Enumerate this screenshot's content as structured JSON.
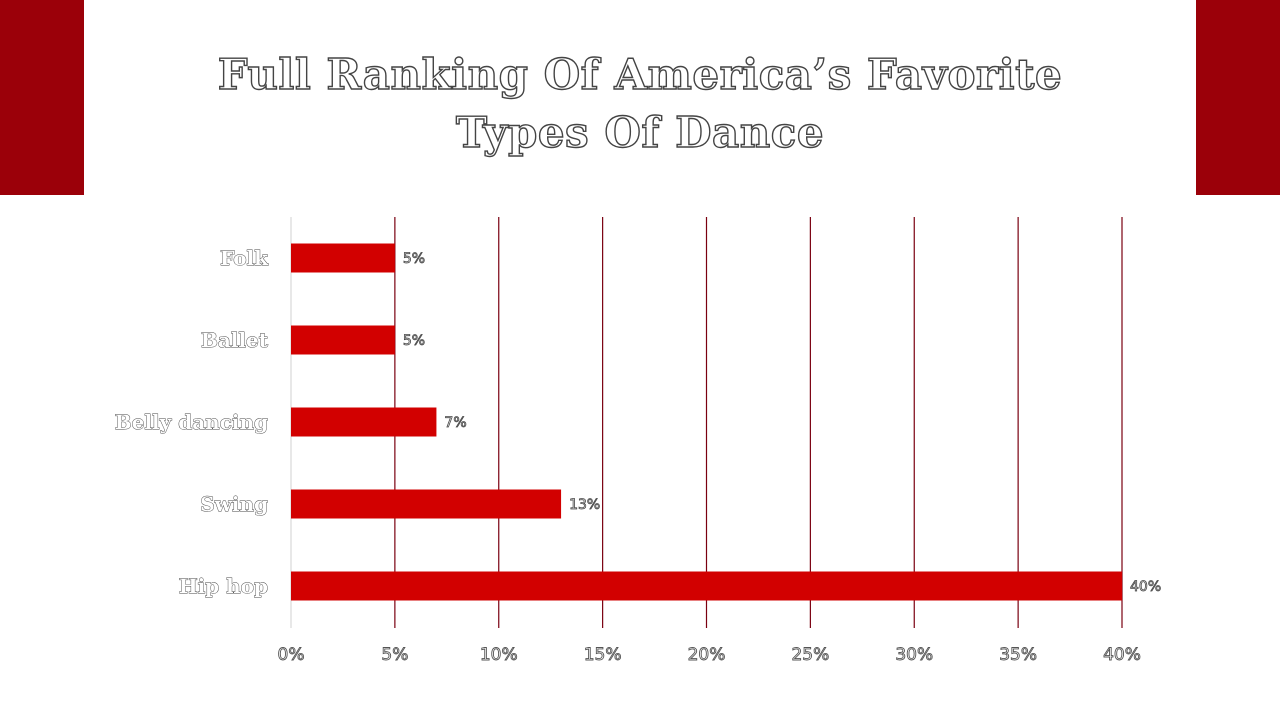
{
  "colors": {
    "accent": "#9B0009",
    "bar": "#D20000",
    "gridline": "#7A0010",
    "axis": "#D0D0D0"
  },
  "title": {
    "line1": "Full Ranking Of America’s Favorite",
    "line2": "Types Of Dance"
  },
  "chart_data": {
    "type": "bar",
    "orientation": "horizontal",
    "categories": [
      "Folk",
      "Ballet",
      "Belly dancing",
      "Swing",
      "Hip hop"
    ],
    "values": [
      5,
      5,
      7,
      13,
      40
    ],
    "data_labels": [
      "5%",
      "5%",
      "7%",
      "13%",
      "40%"
    ],
    "xlim": [
      0,
      40
    ],
    "x_ticks": [
      0,
      5,
      10,
      15,
      20,
      25,
      30,
      35,
      40
    ],
    "x_tick_labels": [
      "0%",
      "5%",
      "10%",
      "15%",
      "20%",
      "25%",
      "30%",
      "35%",
      "40%"
    ],
    "grid": "vertical",
    "legend": "none"
  }
}
